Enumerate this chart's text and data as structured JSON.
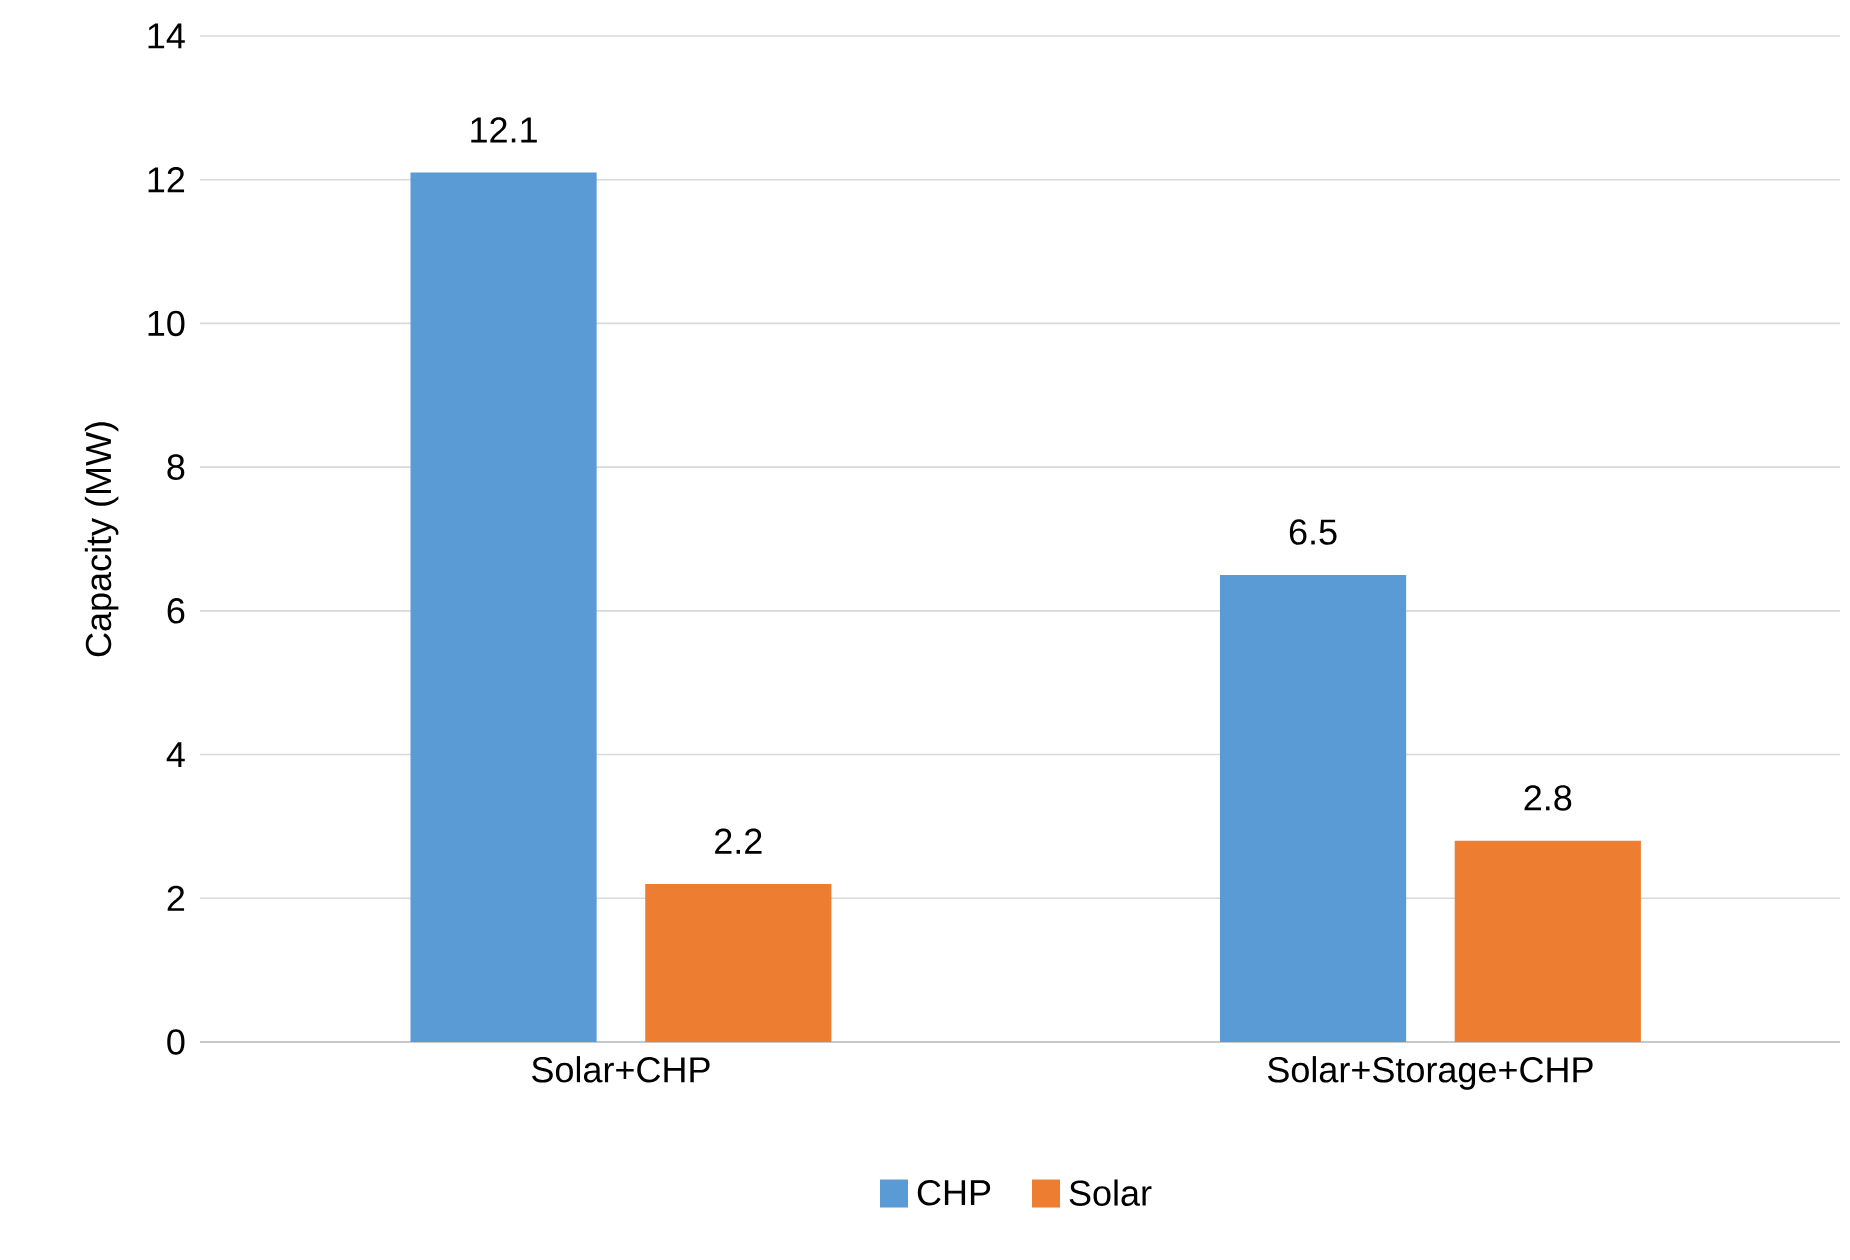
{
  "chart_data": {
    "type": "bar",
    "ylabel": "Capacity (MW)",
    "categories": [
      "Solar+CHP",
      "Solar+Storage+CHP"
    ],
    "series": [
      {
        "name": "CHP",
        "color": "#5b9bd5",
        "values": [
          12.1,
          6.5
        ]
      },
      {
        "name": "Solar",
        "color": "#ed7d31",
        "values": [
          2.2,
          2.8
        ]
      }
    ],
    "ylim": [
      0,
      14
    ],
    "yticks": [
      0,
      2,
      4,
      6,
      8,
      10,
      12,
      14
    ],
    "grid": "y",
    "legend": "bottom",
    "data_labels": true
  }
}
